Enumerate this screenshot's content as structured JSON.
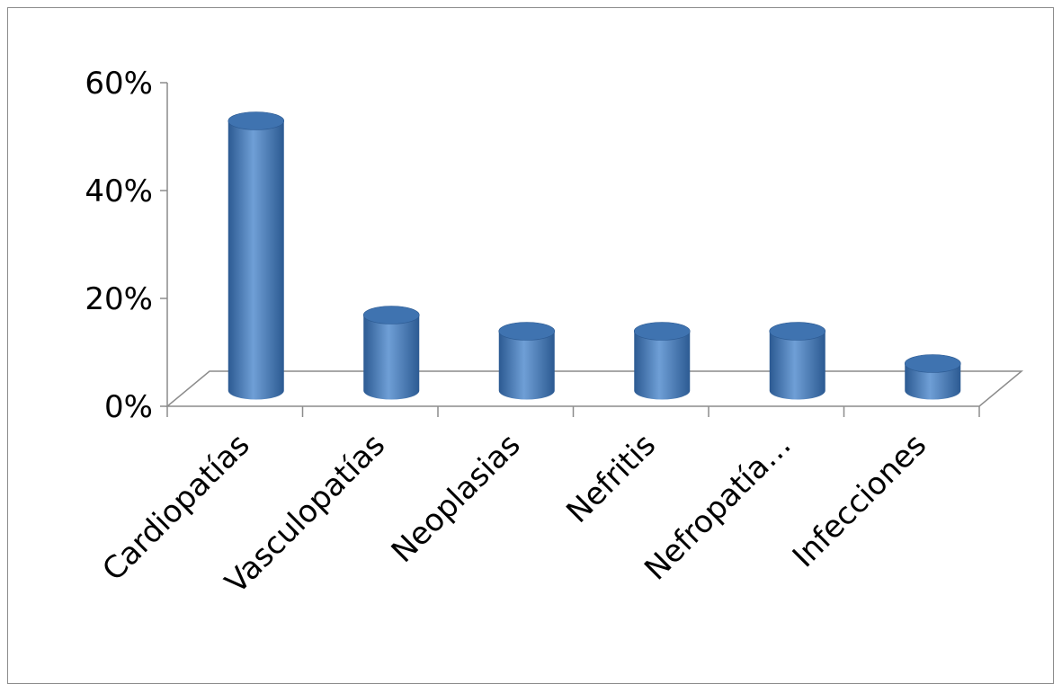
{
  "chart_data": {
    "type": "bar",
    "style": "3d-cylinder",
    "categories": [
      "Cardiopatías",
      "Vasculopatías",
      "Neoplasias",
      "Nefritis",
      "Nefropatía…",
      "Infecciones"
    ],
    "values": [
      50,
      14,
      11,
      11,
      11,
      5
    ],
    "y_tick_labels": [
      "0%",
      "20%",
      "40%",
      "60%"
    ],
    "ylim": [
      0,
      60
    ],
    "grid": false,
    "legend": "none",
    "title": "",
    "xlabel": "",
    "ylabel": "",
    "colors": {
      "bar": "#4a7ebb",
      "bar_dark": "#2c5a92",
      "bar_light": "#6f9fd6",
      "bar_top": "#3f73b0",
      "axis": "#8c8c8c"
    }
  }
}
